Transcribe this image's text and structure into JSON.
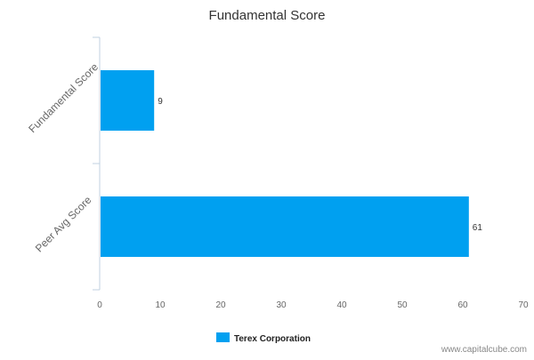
{
  "chart_data": {
    "type": "bar",
    "orientation": "horizontal",
    "title": "Fundamental Score",
    "categories": [
      "Fundamental Score",
      "Peer Avg Score"
    ],
    "series": [
      {
        "name": "Terex Corporation",
        "values": [
          9,
          61
        ],
        "color": "#00a0f0"
      }
    ],
    "xlim": [
      0,
      70
    ],
    "xticks": [
      0,
      10,
      20,
      30,
      40,
      50,
      60,
      70
    ],
    "grid": false,
    "legend_position": "bottom-center",
    "data_labels": true
  },
  "watermark": "www.capitalcube.com",
  "colors": {
    "bar": "#00a0f0",
    "axis": "#c0d0e0",
    "text": "#333333",
    "tick_text": "#666666",
    "watermark": "#888888"
  }
}
